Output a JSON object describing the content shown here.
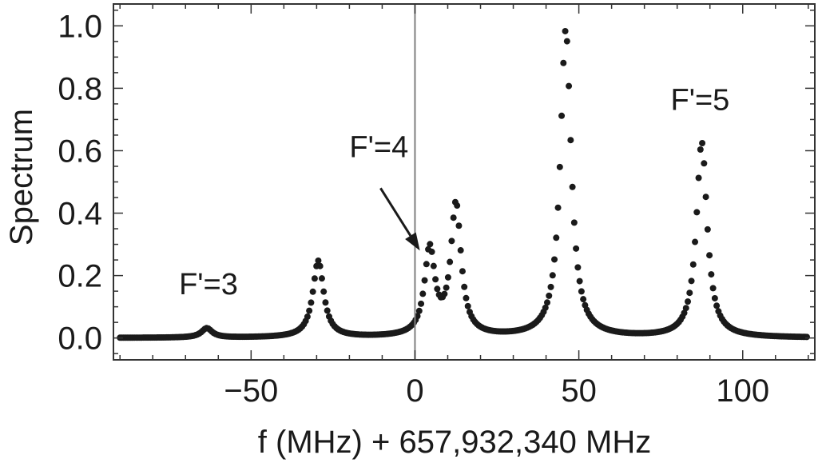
{
  "chart_data": {
    "type": "scatter",
    "title": "",
    "xlabel": "f (MHz) + 657,932,340 MHz",
    "ylabel": "Spectrum",
    "xlim": [
      -92,
      122
    ],
    "ylim": [
      -0.07,
      1.07
    ],
    "x_ticks": [
      -50,
      0,
      50,
      100
    ],
    "x_tick_labels": [
      "−50",
      "0",
      "50",
      "100"
    ],
    "y_ticks": [
      0.0,
      0.2,
      0.4,
      0.6,
      0.8,
      1.0
    ],
    "y_tick_labels": [
      "0.0",
      "0.2",
      "0.4",
      "0.6",
      "0.8",
      "1.0"
    ],
    "x_minor_step": 10,
    "y_minor_step": 0.05,
    "grid": false,
    "marker_color": "#1a1a1a",
    "reference_line": {
      "x": 0,
      "color": "#808080"
    },
    "peaks": [
      {
        "center": -63.5,
        "amplitude": 0.03,
        "hwhm": 2.0
      },
      {
        "center": -29.5,
        "amplitude": 0.245,
        "hwhm": 2.0
      },
      {
        "center": 4.5,
        "amplitude": 0.275,
        "hwhm": 1.9
      },
      {
        "center": 12.5,
        "amplitude": 0.42,
        "hwhm": 1.9
      },
      {
        "center": 46.0,
        "amplitude": 0.985,
        "hwhm": 2.0
      },
      {
        "center": 87.5,
        "amplitude": 0.625,
        "hwhm": 2.0
      }
    ],
    "x_range": [
      -90,
      120
    ],
    "sample_step": 0.55,
    "annotations": [
      {
        "text": "F'=3",
        "x": -63,
        "y": 0.14
      },
      {
        "text": "F'=4",
        "x": -11,
        "y": 0.58
      },
      {
        "text": "F'=5",
        "x": 87,
        "y": 0.73
      }
    ],
    "arrow": {
      "from": [
        -10.5,
        0.48
      ],
      "to": [
        1.5,
        0.28
      ]
    }
  }
}
